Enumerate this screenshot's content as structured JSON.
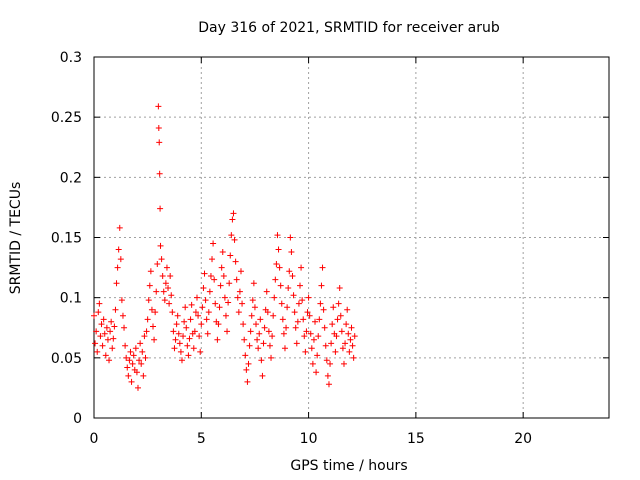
{
  "chart_data": {
    "type": "scatter",
    "title": "Day 316 of 2021, SRMTID for receiver arub",
    "xlabel": "GPS time / hours",
    "ylabel": "SRMTID / TECUs",
    "xlim": [
      0,
      24
    ],
    "ylim": [
      0,
      0.3
    ],
    "grid": true,
    "marker": "+",
    "series_color": "#ff0000",
    "x_ticks": [
      {
        "value": 0,
        "label": "0"
      },
      {
        "value": 5,
        "label": "5"
      },
      {
        "value": 10,
        "label": "10"
      },
      {
        "value": 15,
        "label": "15"
      },
      {
        "value": 20,
        "label": "20"
      }
    ],
    "y_ticks": [
      {
        "value": 0,
        "label": "0"
      },
      {
        "value": 0.05,
        "label": "0.05"
      },
      {
        "value": 0.1,
        "label": "0.1"
      },
      {
        "value": 0.15,
        "label": "0.15"
      },
      {
        "value": 0.2,
        "label": "0.2"
      },
      {
        "value": 0.25,
        "label": "0.25"
      },
      {
        "value": 0.3,
        "label": "0.3"
      }
    ],
    "series": [
      {
        "name": "SRMTID",
        "points": [
          [
            0.0,
            0.085
          ],
          [
            0.05,
            0.062
          ],
          [
            0.1,
            0.072
          ],
          [
            0.15,
            0.055
          ],
          [
            0.2,
            0.088
          ],
          [
            0.25,
            0.095
          ],
          [
            0.3,
            0.068
          ],
          [
            0.35,
            0.078
          ],
          [
            0.4,
            0.06
          ],
          [
            0.45,
            0.082
          ],
          [
            0.5,
            0.07
          ],
          [
            0.55,
            0.052
          ],
          [
            0.6,
            0.075
          ],
          [
            0.65,
            0.065
          ],
          [
            0.7,
            0.048
          ],
          [
            0.75,
            0.072
          ],
          [
            0.8,
            0.08
          ],
          [
            0.85,
            0.058
          ],
          [
            0.9,
            0.066
          ],
          [
            0.95,
            0.076
          ],
          [
            1.0,
            0.09
          ],
          [
            1.05,
            0.112
          ],
          [
            1.1,
            0.125
          ],
          [
            1.15,
            0.14
          ],
          [
            1.2,
            0.158
          ],
          [
            1.25,
            0.132
          ],
          [
            1.3,
            0.098
          ],
          [
            1.35,
            0.085
          ],
          [
            1.4,
            0.075
          ],
          [
            1.45,
            0.06
          ],
          [
            1.5,
            0.05
          ],
          [
            1.55,
            0.042
          ],
          [
            1.6,
            0.035
          ],
          [
            1.65,
            0.048
          ],
          [
            1.7,
            0.055
          ],
          [
            1.75,
            0.03
          ],
          [
            1.8,
            0.045
          ],
          [
            1.85,
            0.052
          ],
          [
            1.9,
            0.04
          ],
          [
            1.95,
            0.058
          ],
          [
            2.0,
            0.038
          ],
          [
            2.05,
            0.025
          ],
          [
            2.1,
            0.048
          ],
          [
            2.15,
            0.062
          ],
          [
            2.2,
            0.045
          ],
          [
            2.25,
            0.055
          ],
          [
            2.3,
            0.035
          ],
          [
            2.35,
            0.068
          ],
          [
            2.4,
            0.05
          ],
          [
            2.45,
            0.072
          ],
          [
            2.5,
            0.082
          ],
          [
            2.55,
            0.098
          ],
          [
            2.6,
            0.11
          ],
          [
            2.65,
            0.122
          ],
          [
            2.7,
            0.09
          ],
          [
            2.75,
            0.076
          ],
          [
            2.8,
            0.065
          ],
          [
            2.85,
            0.088
          ],
          [
            2.9,
            0.105
          ],
          [
            2.95,
            0.128
          ],
          [
            3.0,
            0.259
          ],
          [
            3.02,
            0.241
          ],
          [
            3.04,
            0.229
          ],
          [
            3.06,
            0.203
          ],
          [
            3.08,
            0.174
          ],
          [
            3.1,
            0.143
          ],
          [
            3.15,
            0.132
          ],
          [
            3.2,
            0.118
          ],
          [
            3.25,
            0.105
          ],
          [
            3.3,
            0.098
          ],
          [
            3.35,
            0.112
          ],
          [
            3.4,
            0.125
          ],
          [
            3.45,
            0.108
          ],
          [
            3.5,
            0.095
          ],
          [
            3.55,
            0.118
          ],
          [
            3.6,
            0.102
          ],
          [
            3.65,
            0.088
          ],
          [
            3.7,
            0.072
          ],
          [
            3.75,
            0.058
          ],
          [
            3.8,
            0.065
          ],
          [
            3.85,
            0.078
          ],
          [
            3.9,
            0.085
          ],
          [
            3.95,
            0.07
          ],
          [
            4.0,
            0.062
          ],
          [
            4.05,
            0.055
          ],
          [
            4.1,
            0.048
          ],
          [
            4.15,
            0.068
          ],
          [
            4.2,
            0.08
          ],
          [
            4.25,
            0.092
          ],
          [
            4.3,
            0.075
          ],
          [
            4.35,
            0.06
          ],
          [
            4.4,
            0.052
          ],
          [
            4.45,
            0.066
          ],
          [
            4.5,
            0.082
          ],
          [
            4.55,
            0.094
          ],
          [
            4.6,
            0.07
          ],
          [
            4.65,
            0.058
          ],
          [
            4.7,
            0.072
          ],
          [
            4.75,
            0.088
          ],
          [
            4.8,
            0.1
          ],
          [
            4.85,
            0.085
          ],
          [
            4.9,
            0.068
          ],
          [
            4.95,
            0.055
          ],
          [
            5.0,
            0.078
          ],
          [
            5.05,
            0.092
          ],
          [
            5.1,
            0.108
          ],
          [
            5.15,
            0.12
          ],
          [
            5.2,
            0.098
          ],
          [
            5.25,
            0.082
          ],
          [
            5.3,
            0.07
          ],
          [
            5.35,
            0.088
          ],
          [
            5.4,
            0.105
          ],
          [
            5.45,
            0.118
          ],
          [
            5.5,
            0.132
          ],
          [
            5.55,
            0.145
          ],
          [
            5.6,
            0.115
          ],
          [
            5.65,
            0.095
          ],
          [
            5.7,
            0.08
          ],
          [
            5.75,
            0.065
          ],
          [
            5.8,
            0.078
          ],
          [
            5.85,
            0.092
          ],
          [
            5.9,
            0.11
          ],
          [
            5.95,
            0.125
          ],
          [
            6.0,
            0.138
          ],
          [
            6.05,
            0.118
          ],
          [
            6.1,
            0.1
          ],
          [
            6.15,
            0.085
          ],
          [
            6.2,
            0.072
          ],
          [
            6.25,
            0.096
          ],
          [
            6.3,
            0.112
          ],
          [
            6.35,
            0.135
          ],
          [
            6.4,
            0.152
          ],
          [
            6.45,
            0.165
          ],
          [
            6.5,
            0.17
          ],
          [
            6.55,
            0.148
          ],
          [
            6.6,
            0.13
          ],
          [
            6.65,
            0.115
          ],
          [
            6.7,
            0.1
          ],
          [
            6.75,
            0.088
          ],
          [
            6.8,
            0.105
          ],
          [
            6.85,
            0.122
          ],
          [
            6.9,
            0.095
          ],
          [
            6.95,
            0.078
          ],
          [
            7.0,
            0.065
          ],
          [
            7.05,
            0.052
          ],
          [
            7.1,
            0.04
          ],
          [
            7.15,
            0.03
          ],
          [
            7.2,
            0.045
          ],
          [
            7.25,
            0.06
          ],
          [
            7.3,
            0.072
          ],
          [
            7.35,
            0.085
          ],
          [
            7.4,
            0.098
          ],
          [
            7.45,
            0.112
          ],
          [
            7.5,
            0.092
          ],
          [
            7.55,
            0.078
          ],
          [
            7.6,
            0.065
          ],
          [
            7.65,
            0.058
          ],
          [
            7.7,
            0.07
          ],
          [
            7.75,
            0.082
          ],
          [
            7.8,
            0.048
          ],
          [
            7.85,
            0.035
          ],
          [
            7.9,
            0.062
          ],
          [
            7.95,
            0.075
          ],
          [
            8.0,
            0.09
          ],
          [
            8.05,
            0.105
          ],
          [
            8.1,
            0.088
          ],
          [
            8.15,
            0.072
          ],
          [
            8.2,
            0.06
          ],
          [
            8.25,
            0.05
          ],
          [
            8.3,
            0.068
          ],
          [
            8.35,
            0.085
          ],
          [
            8.4,
            0.1
          ],
          [
            8.45,
            0.115
          ],
          [
            8.5,
            0.128
          ],
          [
            8.55,
            0.152
          ],
          [
            8.6,
            0.14
          ],
          [
            8.65,
            0.125
          ],
          [
            8.7,
            0.11
          ],
          [
            8.75,
            0.095
          ],
          [
            8.8,
            0.082
          ],
          [
            8.85,
            0.07
          ],
          [
            8.9,
            0.058
          ],
          [
            8.95,
            0.075
          ],
          [
            9.0,
            0.092
          ],
          [
            9.05,
            0.108
          ],
          [
            9.1,
            0.122
          ],
          [
            9.15,
            0.15
          ],
          [
            9.2,
            0.138
          ],
          [
            9.25,
            0.118
          ],
          [
            9.3,
            0.102
          ],
          [
            9.35,
            0.088
          ],
          [
            9.4,
            0.075
          ],
          [
            9.45,
            0.062
          ],
          [
            9.5,
            0.08
          ],
          [
            9.55,
            0.095
          ],
          [
            9.6,
            0.11
          ],
          [
            9.65,
            0.125
          ],
          [
            9.7,
            0.098
          ],
          [
            9.75,
            0.082
          ],
          [
            9.8,
            0.068
          ],
          [
            9.85,
            0.055
          ],
          [
            9.9,
            0.072
          ],
          [
            9.95,
            0.088
          ],
          [
            10.0,
            0.1
          ],
          [
            10.05,
            0.085
          ],
          [
            10.1,
            0.07
          ],
          [
            10.15,
            0.058
          ],
          [
            10.2,
            0.045
          ],
          [
            10.25,
            0.065
          ],
          [
            10.3,
            0.08
          ],
          [
            10.35,
            0.038
          ],
          [
            10.4,
            0.052
          ],
          [
            10.45,
            0.068
          ],
          [
            10.5,
            0.082
          ],
          [
            10.55,
            0.095
          ],
          [
            10.6,
            0.11
          ],
          [
            10.65,
            0.125
          ],
          [
            10.7,
            0.09
          ],
          [
            10.75,
            0.075
          ],
          [
            10.8,
            0.06
          ],
          [
            10.85,
            0.048
          ],
          [
            10.9,
            0.035
          ],
          [
            10.95,
            0.028
          ],
          [
            11.0,
            0.045
          ],
          [
            11.05,
            0.062
          ],
          [
            11.1,
            0.078
          ],
          [
            11.15,
            0.092
          ],
          [
            11.2,
            0.07
          ],
          [
            11.25,
            0.055
          ],
          [
            11.3,
            0.068
          ],
          [
            11.35,
            0.082
          ],
          [
            11.4,
            0.095
          ],
          [
            11.45,
            0.108
          ],
          [
            11.5,
            0.085
          ],
          [
            11.55,
            0.072
          ],
          [
            11.6,
            0.058
          ],
          [
            11.65,
            0.045
          ],
          [
            11.7,
            0.062
          ],
          [
            11.75,
            0.078
          ],
          [
            11.8,
            0.09
          ],
          [
            11.85,
            0.07
          ],
          [
            11.9,
            0.055
          ],
          [
            11.95,
            0.065
          ],
          [
            12.0,
            0.075
          ],
          [
            12.05,
            0.06
          ],
          [
            12.1,
            0.05
          ],
          [
            12.15,
            0.068
          ]
        ]
      }
    ]
  }
}
